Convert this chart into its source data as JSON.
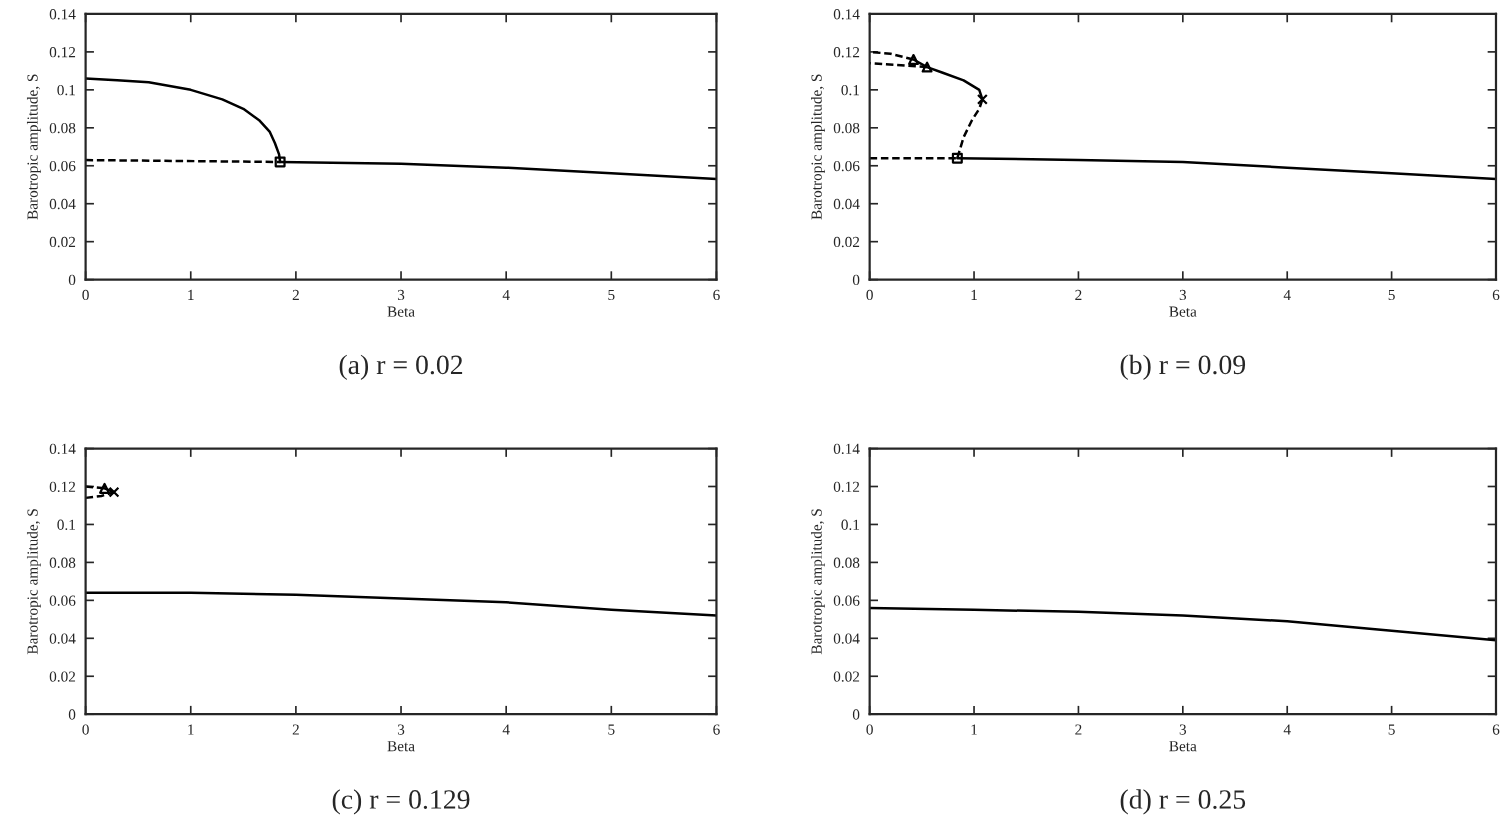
{
  "chart_data": [
    {
      "type": "line",
      "title": "(a) r = 0.02",
      "xlabel": "Beta",
      "ylabel": "Barotropic amplitude, S",
      "xlim": [
        0,
        6
      ],
      "ylim": [
        0,
        0.14
      ],
      "xticks": [
        0,
        1,
        2,
        3,
        4,
        5,
        6
      ],
      "yticks": [
        0,
        0.02,
        0.04,
        0.06,
        0.08,
        0.1,
        0.12,
        0.14
      ],
      "grid": false,
      "legend": false,
      "series": [
        {
          "type": "line",
          "line_style": "solid",
          "color": "#000000",
          "x": [
            0,
            0.3,
            0.6,
            1.0,
            1.3,
            1.5,
            1.65,
            1.75,
            1.8,
            1.84,
            1.85
          ],
          "values": [
            0.106,
            0.105,
            0.104,
            0.1,
            0.095,
            0.09,
            0.084,
            0.078,
            0.072,
            0.066,
            0.062
          ]
        },
        {
          "type": "line",
          "line_style": "solid",
          "color": "#000000",
          "x": [
            1.85,
            3,
            4,
            5,
            6
          ],
          "values": [
            0.062,
            0.061,
            0.059,
            0.056,
            0.053
          ]
        },
        {
          "type": "line",
          "line_style": "dashed",
          "color": "#000000",
          "x": [
            0,
            1.85
          ],
          "values": [
            0.063,
            0.062
          ]
        },
        {
          "type": "scatter",
          "marker": "square",
          "color": "#000000",
          "x": [
            1.85
          ],
          "values": [
            0.062
          ]
        }
      ]
    },
    {
      "type": "line",
      "title": "(b) r = 0.09",
      "xlabel": "Beta",
      "ylabel": "Barotropic amplitude, S",
      "xlim": [
        0,
        6
      ],
      "ylim": [
        0,
        0.14
      ],
      "xticks": [
        0,
        1,
        2,
        3,
        4,
        5,
        6
      ],
      "yticks": [
        0,
        0.02,
        0.04,
        0.06,
        0.08,
        0.1,
        0.12,
        0.14
      ],
      "grid": false,
      "legend": false,
      "series": [
        {
          "type": "line",
          "line_style": "solid",
          "color": "#000000",
          "x": [
            0.84,
            2,
            3,
            4,
            5,
            6
          ],
          "values": [
            0.064,
            0.063,
            0.062,
            0.059,
            0.056,
            0.053
          ]
        },
        {
          "type": "line",
          "line_style": "dashed",
          "color": "#000000",
          "x": [
            0,
            0.84
          ],
          "values": [
            0.064,
            0.064
          ]
        },
        {
          "type": "line",
          "line_style": "dashed",
          "color": "#000000",
          "x": [
            0.84,
            0.9,
            0.98,
            1.05,
            1.08
          ],
          "values": [
            0.064,
            0.075,
            0.084,
            0.09,
            0.095
          ]
        },
        {
          "type": "line",
          "line_style": "solid",
          "color": "#000000",
          "x": [
            1.08,
            1.05,
            0.9,
            0.7,
            0.55,
            0.42
          ],
          "values": [
            0.095,
            0.1,
            0.105,
            0.109,
            0.112,
            0.116
          ]
        },
        {
          "type": "line",
          "line_style": "dashed",
          "color": "#000000",
          "x": [
            0.55,
            0.3,
            0
          ],
          "values": [
            0.112,
            0.113,
            0.114
          ]
        },
        {
          "type": "line",
          "line_style": "dashed",
          "color": "#000000",
          "x": [
            0.42,
            0.2,
            0
          ],
          "values": [
            0.116,
            0.119,
            0.12
          ]
        },
        {
          "type": "scatter",
          "marker": "square",
          "color": "#000000",
          "x": [
            0.84
          ],
          "values": [
            0.064
          ]
        },
        {
          "type": "scatter",
          "marker": "cross",
          "color": "#000000",
          "x": [
            1.08
          ],
          "values": [
            0.095
          ]
        },
        {
          "type": "scatter",
          "marker": "triangle",
          "color": "#000000",
          "x": [
            0.42,
            0.55
          ],
          "values": [
            0.116,
            0.112
          ]
        }
      ]
    },
    {
      "type": "line",
      "title": "(c) r = 0.129",
      "xlabel": "Beta",
      "ylabel": "Barotropic amplitude, S",
      "xlim": [
        0,
        6
      ],
      "ylim": [
        0,
        0.14
      ],
      "xticks": [
        0,
        1,
        2,
        3,
        4,
        5,
        6
      ],
      "yticks": [
        0,
        0.02,
        0.04,
        0.06,
        0.08,
        0.1,
        0.12,
        0.14
      ],
      "grid": false,
      "legend": false,
      "series": [
        {
          "type": "line",
          "line_style": "solid",
          "color": "#000000",
          "x": [
            0,
            1,
            2,
            3,
            4,
            5,
            6
          ],
          "values": [
            0.064,
            0.064,
            0.063,
            0.061,
            0.059,
            0.055,
            0.052
          ]
        },
        {
          "type": "line",
          "line_style": "dashed",
          "color": "#000000",
          "x": [
            0,
            0.18
          ],
          "values": [
            0.12,
            0.119
          ]
        },
        {
          "type": "line",
          "line_style": "solid",
          "color": "#000000",
          "x": [
            0.18,
            0.27
          ],
          "values": [
            0.119,
            0.117
          ]
        },
        {
          "type": "line",
          "line_style": "dashed",
          "color": "#000000",
          "x": [
            0,
            0.15,
            0.27
          ],
          "values": [
            0.114,
            0.115,
            0.117
          ]
        },
        {
          "type": "scatter",
          "marker": "triangle",
          "color": "#000000",
          "x": [
            0.18
          ],
          "values": [
            0.119
          ]
        },
        {
          "type": "scatter",
          "marker": "cross",
          "color": "#000000",
          "x": [
            0.27
          ],
          "values": [
            0.117
          ]
        }
      ]
    },
    {
      "type": "line",
      "title": "(d) r = 0.25",
      "xlabel": "Beta",
      "ylabel": "Barotropic amplitude, S",
      "xlim": [
        0,
        6
      ],
      "ylim": [
        0,
        0.14
      ],
      "xticks": [
        0,
        1,
        2,
        3,
        4,
        5,
        6
      ],
      "yticks": [
        0,
        0.02,
        0.04,
        0.06,
        0.08,
        0.1,
        0.12,
        0.14
      ],
      "grid": false,
      "legend": false,
      "series": [
        {
          "type": "line",
          "line_style": "solid",
          "color": "#000000",
          "x": [
            0,
            1,
            2,
            3,
            4,
            5,
            6
          ],
          "values": [
            0.056,
            0.055,
            0.054,
            0.052,
            0.049,
            0.044,
            0.039
          ]
        }
      ]
    }
  ]
}
